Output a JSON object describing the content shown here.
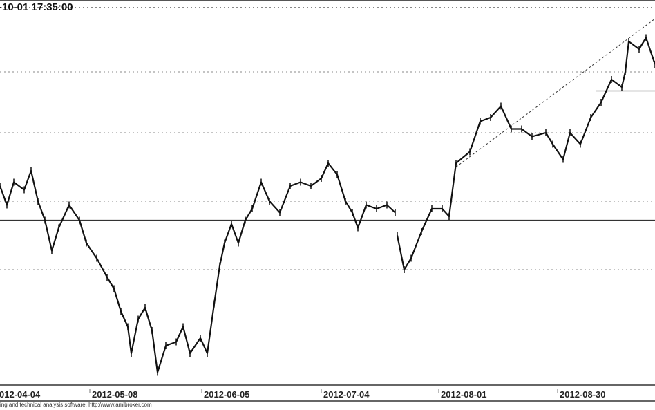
{
  "header": {
    "timestamp": "-10-01 17:35:00"
  },
  "footer": {
    "text": "ing and technical analysis software. http://www.amibroker.com"
  },
  "chart_data": {
    "type": "line",
    "title": "",
    "xlabel": "",
    "ylabel": "",
    "x_tick_labels": [
      "012-04-04",
      "2012-05-08",
      "2012-06-05",
      "2012-07-04",
      "2012-08-01",
      "2012-08-30"
    ],
    "grid": "horizontal dotted",
    "legend": "none",
    "colors": {
      "price": "#111111",
      "grid": "#888888",
      "axis": "#555555"
    },
    "y_note_scale": "relative level (no y-axis labels shown)",
    "series": [
      {
        "values": [
          [
            0,
            52
          ],
          [
            10,
            47
          ],
          [
            20,
            53
          ],
          [
            35,
            51
          ],
          [
            45,
            56
          ],
          [
            55,
            48
          ],
          [
            65,
            43
          ],
          [
            75,
            35
          ],
          [
            85,
            41
          ],
          [
            100,
            47
          ],
          [
            115,
            43
          ],
          [
            125,
            37
          ],
          [
            140,
            33
          ],
          [
            155,
            28
          ],
          [
            165,
            25
          ],
          [
            175,
            19
          ],
          [
            185,
            15
          ],
          [
            190,
            8
          ],
          [
            200,
            17
          ],
          [
            210,
            20
          ],
          [
            220,
            14
          ],
          [
            228,
            3
          ],
          [
            240,
            10
          ],
          [
            255,
            11
          ],
          [
            265,
            15
          ],
          [
            275,
            8
          ],
          [
            290,
            12
          ],
          [
            300,
            8
          ],
          [
            310,
            21
          ],
          [
            318,
            31
          ],
          [
            325,
            37
          ],
          [
            335,
            42
          ],
          [
            345,
            37
          ],
          [
            355,
            43
          ],
          [
            365,
            46
          ],
          [
            378,
            53
          ],
          [
            390,
            48
          ],
          [
            405,
            45
          ],
          [
            420,
            52
          ],
          [
            435,
            53
          ],
          [
            450,
            52
          ],
          [
            465,
            54
          ],
          [
            475,
            58
          ],
          [
            488,
            55
          ],
          [
            500,
            48
          ],
          [
            510,
            45
          ],
          [
            518,
            41
          ],
          [
            530,
            47
          ],
          [
            545,
            46
          ],
          [
            560,
            47
          ],
          [
            572,
            45
          ],
          null,
          [
            575,
            39
          ],
          [
            585,
            30
          ],
          [
            595,
            33
          ],
          [
            610,
            40
          ],
          [
            625,
            46
          ],
          [
            640,
            46
          ],
          [
            650,
            44
          ],
          [
            660,
            58
          ],
          [
            680,
            61
          ],
          [
            695,
            69
          ],
          [
            710,
            70
          ],
          [
            725,
            73
          ],
          [
            740,
            67
          ],
          [
            755,
            67
          ],
          [
            770,
            65
          ],
          [
            790,
            66
          ],
          [
            800,
            63
          ],
          [
            815,
            59
          ],
          [
            825,
            66
          ],
          [
            840,
            63
          ],
          [
            855,
            70
          ],
          [
            870,
            74
          ],
          [
            885,
            80
          ],
          [
            900,
            78
          ],
          [
            905,
            82
          ],
          [
            910,
            90
          ],
          [
            925,
            88
          ],
          [
            935,
            91
          ],
          [
            948,
            84
          ]
        ]
      }
    ],
    "horizontal_lines": [
      {
        "level": 43,
        "style": "solid"
      },
      {
        "level": 77,
        "style": "solid",
        "partial": true
      }
    ],
    "trendline": {
      "from": [
        660,
        57
      ],
      "to": [
        948,
        96
      ],
      "style": "dashed"
    },
    "gridlines": [
      99,
      82,
      66,
      48,
      30,
      11
    ]
  }
}
